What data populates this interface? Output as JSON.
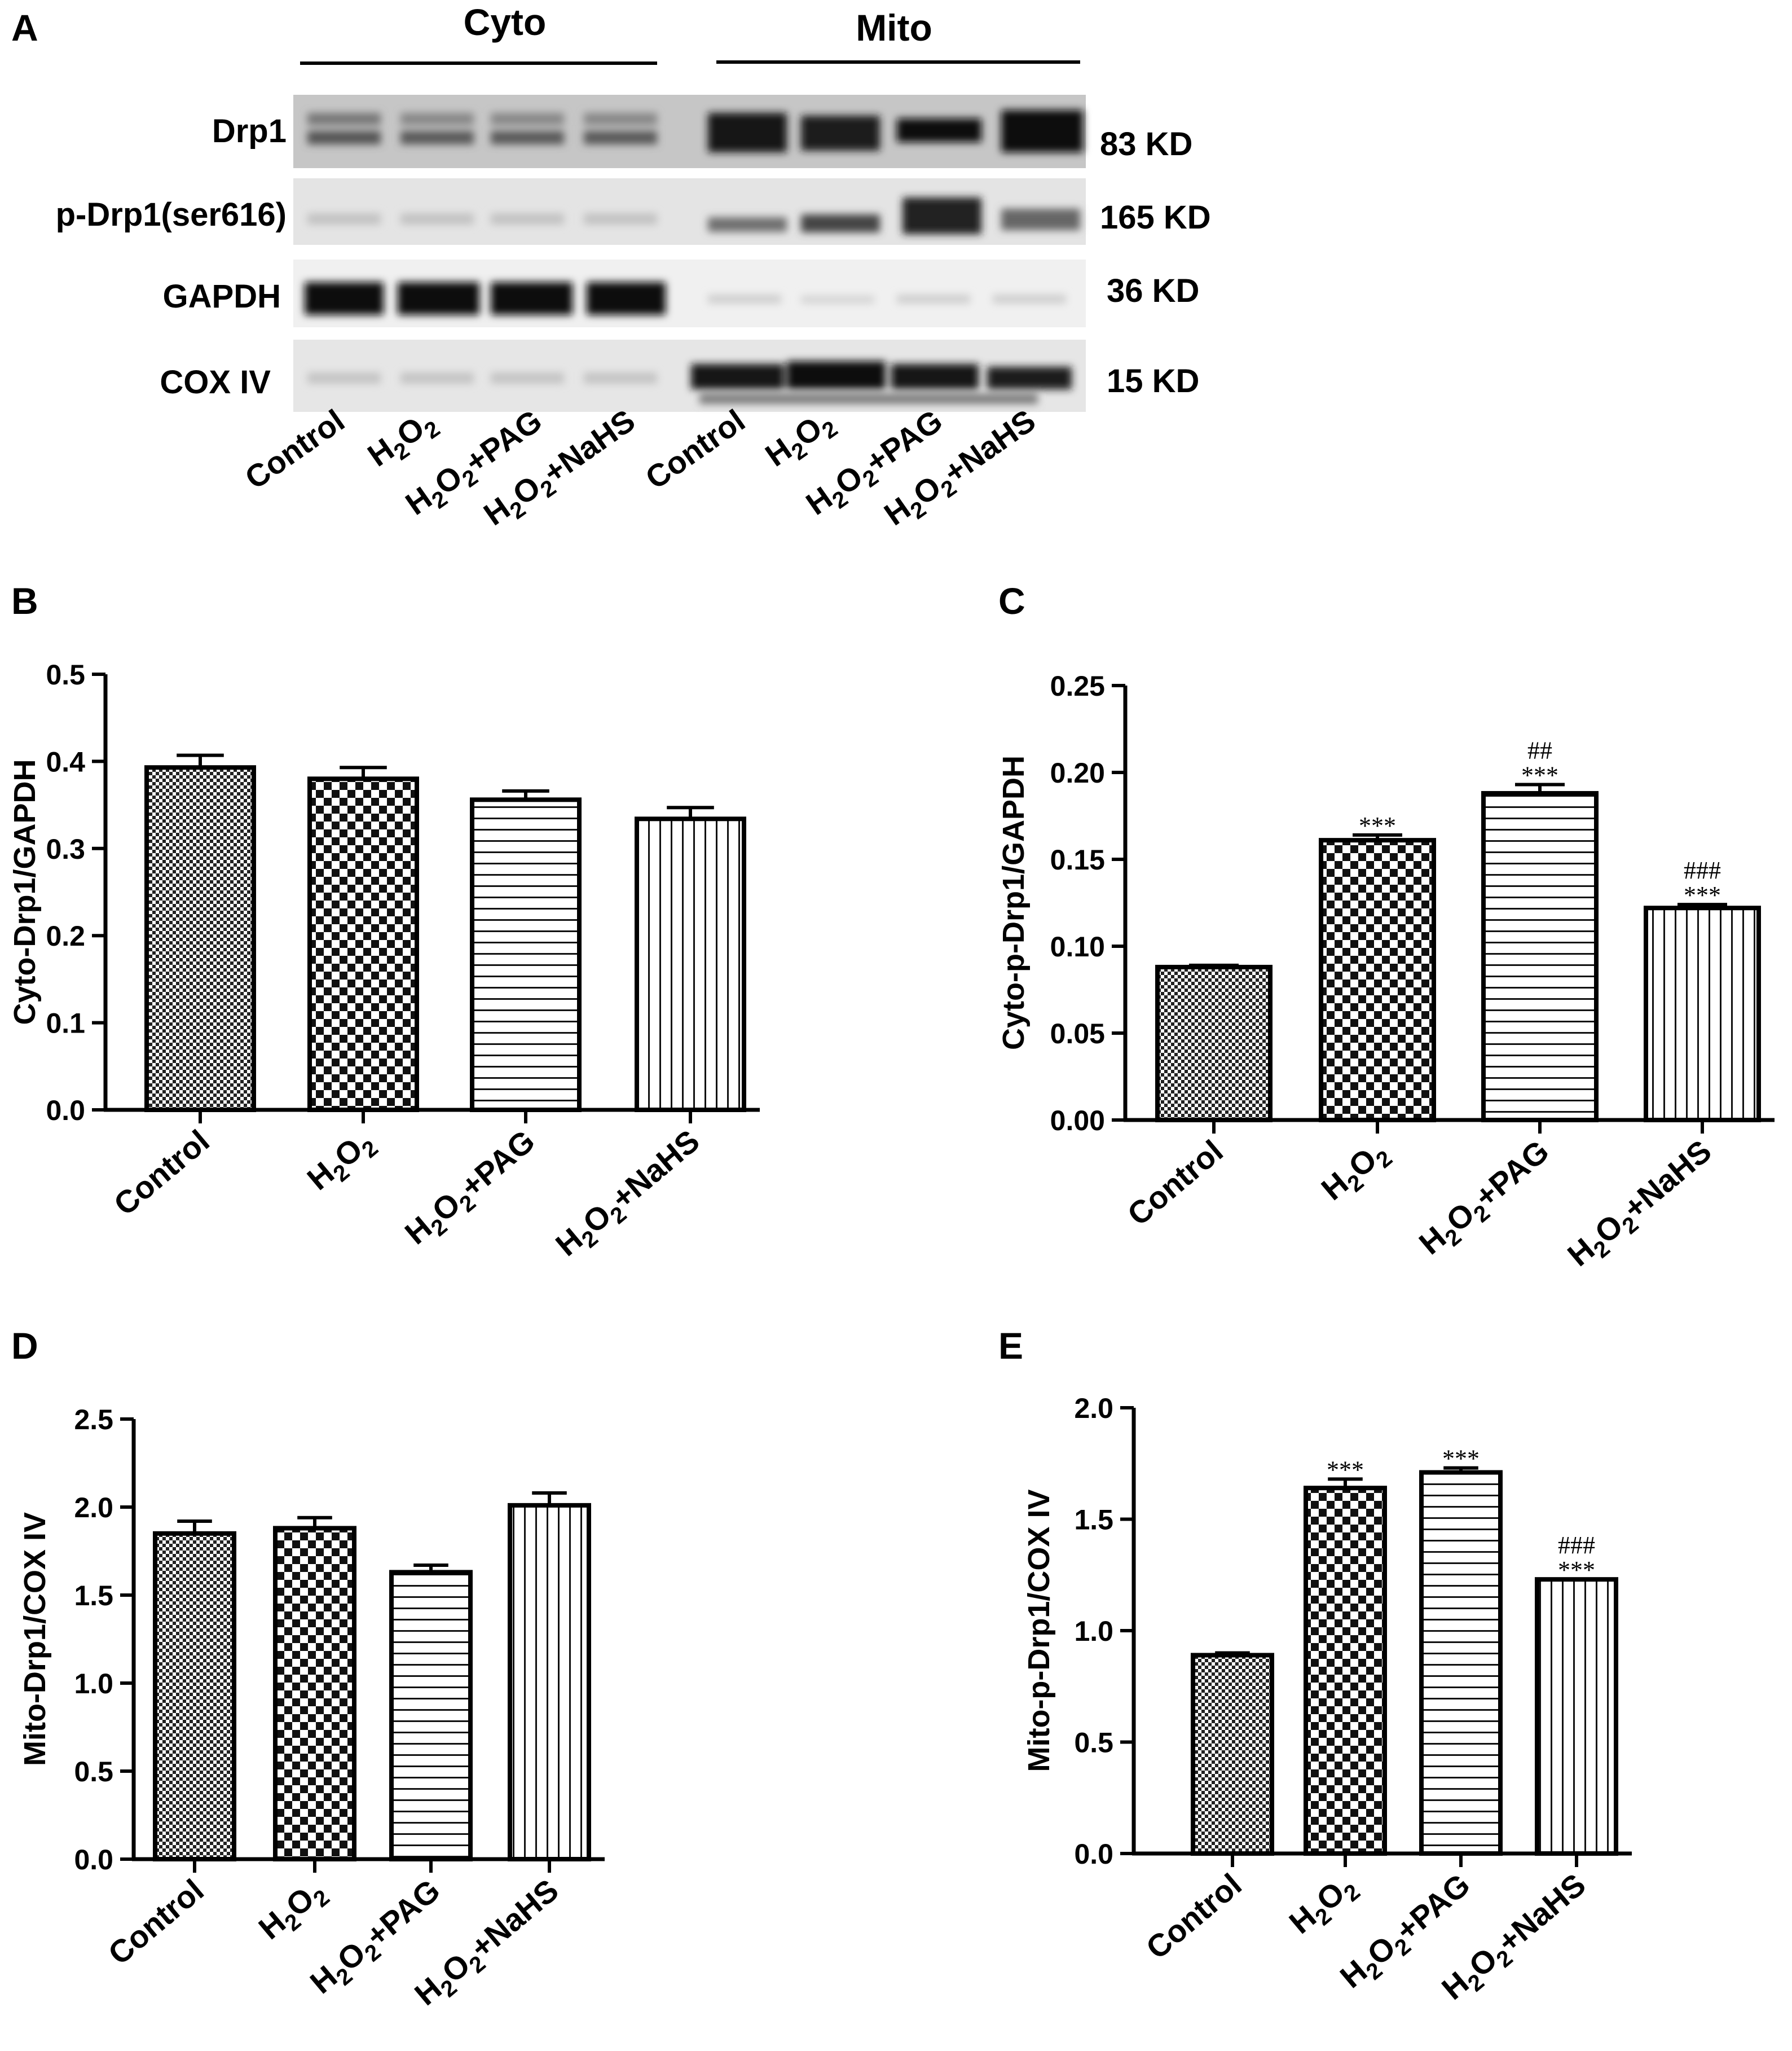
{
  "panel_letters": [
    "A",
    "B",
    "C",
    "D",
    "E"
  ],
  "blot": {
    "groups": [
      "Cyto",
      "Mito"
    ],
    "rows": [
      {
        "protein": "Drp1",
        "size": "83 KD"
      },
      {
        "protein": "p-Drp1(ser616)",
        "size": "165 KD"
      },
      {
        "protein": "GAPDH",
        "size": "36 KD"
      },
      {
        "protein": "COX IV",
        "size": "15 KD"
      }
    ],
    "lanes": [
      "Control",
      "H2O2",
      "H2O2+PAG",
      "H2O2+NaHS",
      "Control",
      "H2O2",
      "H2O2+PAG",
      "H2O2+NaHS"
    ]
  },
  "chart_data": [
    {
      "panel": "B",
      "type": "bar",
      "categories": [
        "Control",
        "H2O2",
        "H2O2+PAG",
        "H2O2+NaHS"
      ],
      "values": [
        0.393,
        0.38,
        0.356,
        0.334
      ],
      "errors": [
        0.014,
        0.013,
        0.01,
        0.013
      ],
      "annotations": [
        "",
        "",
        "",
        ""
      ],
      "ylabel": "Cyto-Drp1/GAPDH",
      "ylim": [
        0,
        0.5
      ],
      "yticks": [
        "0.0",
        "0.1",
        "0.2",
        "0.3",
        "0.4",
        "0.5"
      ],
      "grid": false
    },
    {
      "panel": "C",
      "type": "bar",
      "categories": [
        "Control",
        "H2O2",
        "H2O2+PAG",
        "H2O2+NaHS"
      ],
      "values": [
        0.088,
        0.161,
        0.188,
        0.122
      ],
      "errors": [
        0.001,
        0.003,
        0.005,
        0.002
      ],
      "annotations": [
        "",
        "***",
        "##\n***",
        "###\n***"
      ],
      "ylabel": "Cyto-p-Drp1/GAPDH",
      "ylim": [
        0,
        0.25
      ],
      "yticks": [
        "0.00",
        "0.05",
        "0.10",
        "0.15",
        "0.20",
        "0.25"
      ],
      "grid": false
    },
    {
      "panel": "D",
      "type": "bar",
      "categories": [
        "Control",
        "H2O2",
        "H2O2+PAG",
        "H2O2+NaHS"
      ],
      "values": [
        1.85,
        1.88,
        1.63,
        2.01
      ],
      "errors": [
        0.07,
        0.06,
        0.04,
        0.07
      ],
      "annotations": [
        "",
        "",
        "",
        ""
      ],
      "ylabel": "Mito-Drp1/COX IV",
      "ylim": [
        0,
        2.5
      ],
      "yticks": [
        "0.0",
        "0.5",
        "1.0",
        "1.5",
        "2.0",
        "2.5"
      ],
      "grid": false
    },
    {
      "panel": "E",
      "type": "bar",
      "categories": [
        "Control",
        "H2O2",
        "H2O2+PAG",
        "H2O2+NaHS"
      ],
      "values": [
        0.89,
        1.64,
        1.71,
        1.23
      ],
      "errors": [
        0.01,
        0.04,
        0.02,
        0.0
      ],
      "annotations": [
        "",
        "***",
        "***",
        "###\n***"
      ],
      "ylabel": "Mito-p-Drp1/COX IV",
      "ylim": [
        0,
        2.0
      ],
      "yticks": [
        "0.0",
        "0.5",
        "1.0",
        "1.5",
        "2.0"
      ],
      "grid": false
    }
  ]
}
